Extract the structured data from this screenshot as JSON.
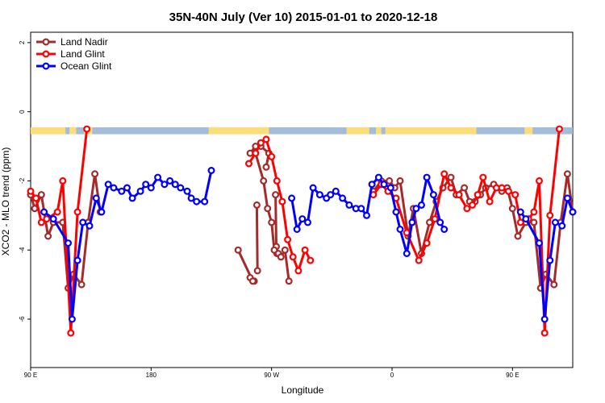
{
  "chart_data": {
    "type": "line",
    "title": "35N-40N July (Ver 10)   2015-01-01 to 2020-12-18",
    "xlabel": "Longitude",
    "ylabel": "XCO2 - MLO trend (ppm)",
    "xlim": [
      0,
      405
    ],
    "ylim": [
      -7.4,
      2.3
    ],
    "x_ticks": [
      {
        "value": 0,
        "label": "90 E"
      },
      {
        "value": 90,
        "label": "180"
      },
      {
        "value": 180,
        "label": "90 W"
      },
      {
        "value": 270,
        "label": "0"
      },
      {
        "value": 360,
        "label": "90 E"
      },
      {
        "value": 450,
        "label": "180"
      }
    ],
    "y_ticks": [
      {
        "value": 2,
        "label": "2"
      },
      {
        "value": 0,
        "label": "0"
      },
      {
        "value": -2,
        "label": "-2"
      },
      {
        "value": -4,
        "label": "-4"
      },
      {
        "value": -6,
        "label": "-6"
      }
    ],
    "legend_position": "top-left",
    "series": [
      {
        "name": "Land Nadir",
        "color": "#a52a2a",
        "segments": [
          [
            [
              0,
              -2.4
            ],
            [
              3,
              -2.8
            ],
            [
              8,
              -2.4
            ],
            [
              13,
              -3.6
            ],
            [
              17,
              -3.2
            ],
            [
              24,
              -3.2
            ],
            [
              28,
              -5.1
            ],
            [
              32,
              -4.7
            ],
            [
              38,
              -5.0
            ],
            [
              43,
              -3.2
            ],
            [
              48,
              -1.8
            ],
            [
              52,
              -2.9
            ]
          ],
          [
            [
              169,
              -2.7
            ],
            [
              169.5,
              -4.6
            ]
          ],
          [
            [
              167,
              -4.9
            ],
            [
              164,
              -4.8
            ]
          ],
          [
            [
              166,
              -4.9
            ],
            [
              155,
              -4.0
            ]
          ],
          [
            [
              183,
              -2.4
            ],
            [
              183.5,
              -3.9
            ]
          ],
          [
            [
              184,
              -4.1
            ]
          ],
          [
            [
              176,
              -1.6
            ],
            [
              178,
              -1.2
            ],
            [
              172,
              -1.0
            ],
            [
              168,
              -1.0
            ],
            [
              164,
              -1.2
            ]
          ],
          [
            [
              168,
              -1.2
            ],
            [
              174,
              -2.0
            ],
            [
              177,
              -2.8
            ],
            [
              180,
              -3.2
            ],
            [
              182,
              -4.0
            ],
            [
              185,
              -4.1
            ],
            [
              187,
              -4.2
            ],
            [
              190,
              -4.0
            ],
            [
              193,
              -4.9
            ]
          ],
          [
            [
              256,
              -2.3
            ],
            [
              262,
              -2.0
            ],
            [
              268,
              -2.0
            ],
            [
              272,
              -2.2
            ],
            [
              276,
              -2.0
            ],
            [
              282,
              -3.6
            ],
            [
              286,
              -2.8
            ],
            [
              292,
              -4.1
            ],
            [
              298,
              -3.2
            ],
            [
              303,
              -2.6
            ],
            [
              308,
              -2.2
            ],
            [
              314,
              -1.9
            ],
            [
              318,
              -2.4
            ],
            [
              324,
              -2.2
            ],
            [
              328,
              -2.6
            ],
            [
              332,
              -2.6
            ],
            [
              336,
              -2.4
            ],
            [
              340,
              -2.2
            ],
            [
              346,
              -2.1
            ],
            [
              352,
              -2.3
            ],
            [
              356,
              -2.2
            ],
            [
              360,
              -2.8
            ],
            [
              364,
              -3.6
            ],
            [
              370,
              -3.2
            ],
            [
              376,
              -3.2
            ],
            [
              381,
              -5.1
            ],
            [
              385,
              -4.7
            ],
            [
              391,
              -5.0
            ],
            [
              396,
              -3.2
            ],
            [
              401,
              -1.8
            ],
            [
              405,
              -2.9
            ]
          ]
        ]
      },
      {
        "name": "Land Glint",
        "color": "#ff0000",
        "segments": [
          [
            [
              0,
              -2.3
            ],
            [
              4,
              -2.5
            ],
            [
              8,
              -3.2
            ],
            [
              12,
              -3.1
            ],
            [
              20,
              -2.9
            ],
            [
              24,
              -2.0
            ],
            [
              30,
              -6.4
            ],
            [
              35,
              -2.9
            ],
            [
              42,
              -0.5
            ]
          ],
          [
            [
              163,
              -1.5
            ],
            [
              168,
              -1.2
            ],
            [
              172,
              -0.9
            ],
            [
              176,
              -0.8
            ],
            [
              180,
              -1.3
            ],
            [
              184,
              -2.0
            ],
            [
              188,
              -2.6
            ],
            [
              192,
              -3.7
            ],
            [
              196,
              -4.2
            ],
            [
              200,
              -4.6
            ],
            [
              205,
              -4.0
            ],
            [
              209,
              -4.3
            ]
          ],
          [
            [
              256,
              -2.4
            ],
            [
              262,
              -2.1
            ],
            [
              267,
              -2.3
            ],
            [
              273,
              -2.5
            ],
            [
              281,
              -3.5
            ],
            [
              290,
              -4.3
            ],
            [
              296,
              -3.8
            ],
            [
              302,
              -3.1
            ],
            [
              309,
              -1.8
            ],
            [
              314,
              -2.2
            ],
            [
              320,
              -2.4
            ],
            [
              326,
              -2.8
            ],
            [
              330,
              -2.7
            ],
            [
              334,
              -2.4
            ],
            [
              338,
              -1.9
            ],
            [
              343,
              -2.6
            ],
            [
              348,
              -2.2
            ],
            [
              352,
              -2.2
            ],
            [
              357,
              -2.3
            ],
            [
              362,
              -2.4
            ],
            [
              366,
              -3.2
            ],
            [
              372,
              -3.1
            ],
            [
              376,
              -2.9
            ],
            [
              380,
              -2.0
            ],
            [
              384,
              -6.4
            ],
            [
              388,
              -3.0
            ],
            [
              395,
              -0.5
            ]
          ]
        ]
      },
      {
        "name": "Ocean Glint",
        "color": "#0000ff",
        "segments": [
          [
            [
              10,
              -2.9
            ],
            [
              17,
              -3.1
            ],
            [
              28,
              -3.8
            ],
            [
              31,
              -6.0
            ],
            [
              35,
              -4.3
            ],
            [
              39,
              -3.2
            ],
            [
              44,
              -3.3
            ],
            [
              49,
              -2.5
            ],
            [
              53,
              -2.9
            ],
            [
              58,
              -2.1
            ],
            [
              62,
              -2.2
            ],
            [
              68,
              -2.3
            ],
            [
              72,
              -2.2
            ],
            [
              76,
              -2.5
            ],
            [
              82,
              -2.3
            ],
            [
              86,
              -2.1
            ],
            [
              90,
              -2.2
            ],
            [
              95,
              -1.9
            ],
            [
              100,
              -2.1
            ],
            [
              104,
              -2.0
            ],
            [
              108,
              -2.1
            ],
            [
              112,
              -2.2
            ],
            [
              117,
              -2.3
            ],
            [
              120,
              -2.5
            ],
            [
              124,
              -2.6
            ],
            [
              130,
              -2.6
            ],
            [
              135,
              -1.7
            ]
          ],
          [
            [
              195,
              -2.5
            ],
            [
              199,
              -3.4
            ],
            [
              203,
              -3.1
            ],
            [
              207,
              -3.2
            ],
            [
              211,
              -2.2
            ],
            [
              216,
              -2.4
            ],
            [
              221,
              -2.5
            ],
            [
              224,
              -2.4
            ],
            [
              228,
              -2.3
            ],
            [
              233,
              -2.5
            ],
            [
              238,
              -2.7
            ],
            [
              243,
              -2.8
            ],
            [
              247,
              -2.8
            ],
            [
              251,
              -3.0
            ],
            [
              255,
              -2.1
            ],
            [
              260,
              -1.9
            ],
            [
              264,
              -2.1
            ],
            [
              269,
              -2.2
            ],
            [
              273,
              -2.9
            ],
            [
              276,
              -3.4
            ],
            [
              281,
              -4.1
            ],
            [
              285,
              -3.2
            ],
            [
              288,
              -2.8
            ],
            [
              292,
              -2.7
            ],
            [
              296,
              -1.9
            ],
            [
              301,
              -2.4
            ],
            [
              306,
              -3.2
            ],
            [
              309,
              -3.4
            ]
          ],
          [
            [
              366,
              -2.9
            ],
            [
              370,
              -3.1
            ],
            [
              380,
              -3.8
            ],
            [
              384,
              -6.0
            ],
            [
              388,
              -4.3
            ],
            [
              392,
              -3.2
            ],
            [
              397,
              -3.3
            ],
            [
              401,
              -2.5
            ],
            [
              405,
              -2.9
            ]
          ]
        ]
      }
    ],
    "coverage_band": {
      "y_top": -0.45,
      "y_bottom": -0.65,
      "base_color": "#a3bcd8",
      "land_color": "#fbde7b",
      "land_ranges": [
        [
          0,
          26
        ],
        [
          29,
          34
        ],
        [
          40,
          46
        ],
        [
          133,
          178
        ],
        [
          236,
          253
        ],
        [
          258,
          262
        ],
        [
          265,
          333
        ],
        [
          369,
          375
        ]
      ]
    }
  }
}
